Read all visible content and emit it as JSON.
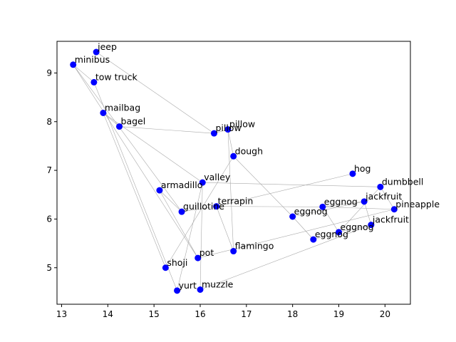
{
  "chart_data": {
    "type": "scatter",
    "title": "",
    "xlabel": "",
    "ylabel": "",
    "xlim": [
      12.9,
      20.55
    ],
    "ylim": [
      4.25,
      9.65
    ],
    "xticks": [
      13,
      14,
      15,
      16,
      17,
      18,
      19,
      20
    ],
    "yticks": [
      5,
      6,
      7,
      8,
      9
    ],
    "grid": false,
    "point_color": "#0000ff",
    "edge_color": "#aaaaaa",
    "points": [
      {
        "label": "jeep",
        "x": 13.75,
        "y": 9.43
      },
      {
        "label": "minibus",
        "x": 13.25,
        "y": 9.17
      },
      {
        "label": "tow truck",
        "x": 13.7,
        "y": 8.81
      },
      {
        "label": "mailbag",
        "x": 13.9,
        "y": 8.18
      },
      {
        "label": "bagel",
        "x": 14.25,
        "y": 7.9
      },
      {
        "label": "pillow",
        "x": 16.3,
        "y": 7.76
      },
      {
        "label": "pillow",
        "x": 16.6,
        "y": 7.84
      },
      {
        "label": "dough",
        "x": 16.72,
        "y": 7.29
      },
      {
        "label": "hog",
        "x": 19.3,
        "y": 6.93
      },
      {
        "label": "dumbbell",
        "x": 19.9,
        "y": 6.66
      },
      {
        "label": "valley",
        "x": 16.05,
        "y": 6.75
      },
      {
        "label": "armadillo",
        "x": 15.12,
        "y": 6.59
      },
      {
        "label": "jackfruit",
        "x": 19.55,
        "y": 6.36
      },
      {
        "label": "pineapple",
        "x": 20.2,
        "y": 6.2
      },
      {
        "label": "terrapin",
        "x": 16.35,
        "y": 6.26
      },
      {
        "label": "eggnog",
        "x": 18.65,
        "y": 6.25
      },
      {
        "label": "guillotine",
        "x": 15.6,
        "y": 6.15
      },
      {
        "label": "eggnog",
        "x": 18.0,
        "y": 6.05
      },
      {
        "label": "jackfruit",
        "x": 19.7,
        "y": 5.88
      },
      {
        "label": "eggnog",
        "x": 19.0,
        "y": 5.73
      },
      {
        "label": "eggnog",
        "x": 18.45,
        "y": 5.58
      },
      {
        "label": "flamingo",
        "x": 16.72,
        "y": 5.34
      },
      {
        "label": "pot",
        "x": 15.95,
        "y": 5.2
      },
      {
        "label": "shoji",
        "x": 15.25,
        "y": 5.0
      },
      {
        "label": "yurt",
        "x": 15.5,
        "y": 4.53
      },
      {
        "label": "muzzle",
        "x": 16.0,
        "y": 4.55
      }
    ],
    "edges": [
      [
        0,
        5
      ],
      [
        5,
        6
      ],
      [
        6,
        7
      ],
      [
        5,
        4
      ],
      [
        4,
        3
      ],
      [
        3,
        10
      ],
      [
        10,
        9
      ],
      [
        8,
        14
      ],
      [
        14,
        15
      ],
      [
        15,
        12
      ],
      [
        12,
        18
      ],
      [
        18,
        19
      ],
      [
        19,
        20
      ],
      [
        20,
        17
      ],
      [
        17,
        7
      ],
      [
        1,
        2
      ],
      [
        1,
        22
      ],
      [
        2,
        24
      ],
      [
        24,
        10
      ],
      [
        10,
        25
      ],
      [
        25,
        18
      ],
      [
        1,
        16
      ],
      [
        16,
        14
      ],
      [
        14,
        21
      ],
      [
        21,
        6
      ],
      [
        3,
        23
      ],
      [
        23,
        7
      ],
      [
        11,
        16
      ],
      [
        11,
        22
      ],
      [
        22,
        13
      ],
      [
        13,
        15
      ],
      [
        15,
        19
      ],
      [
        12,
        17
      ],
      [
        19,
        9
      ],
      [
        9,
        13
      ]
    ]
  }
}
